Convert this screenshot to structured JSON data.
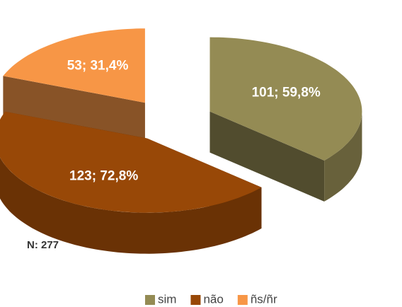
{
  "chart_data": {
    "type": "pie3d",
    "categories": [
      "sim",
      "não",
      "ñs/ñr"
    ],
    "values": [
      101,
      123,
      53
    ],
    "value_labels": [
      "101; 59,8%",
      "123; 72,8%",
      "53; 31,4%"
    ],
    "colors": [
      "#948b54",
      "#984807",
      "#f79646"
    ],
    "annotation": "N: 277",
    "legend": "bottom"
  }
}
